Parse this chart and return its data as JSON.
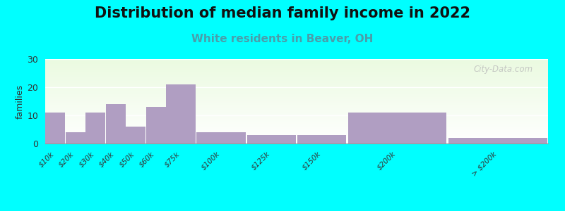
{
  "title": "Distribution of median family income in 2022",
  "subtitle": "White residents in Beaver, OH",
  "ylabel": "families",
  "categories": [
    "$10k",
    "$20k",
    "$30k",
    "$40k",
    "$50k",
    "$60k",
    "$75k",
    "$100k",
    "$125k",
    "$150k",
    "$200k",
    "> $200k"
  ],
  "values": [
    11,
    4,
    11,
    14,
    6,
    13,
    21,
    4,
    3,
    3,
    11,
    2
  ],
  "bin_lefts": [
    0,
    10,
    20,
    30,
    40,
    50,
    60,
    75,
    100,
    125,
    150,
    200
  ],
  "bin_rights": [
    10,
    20,
    30,
    40,
    50,
    60,
    75,
    100,
    125,
    150,
    200,
    250
  ],
  "bar_color": "#b09ec2",
  "outer_bg": "#00ffff",
  "ylim": [
    0,
    30
  ],
  "yticks": [
    0,
    10,
    20,
    30
  ],
  "title_fontsize": 15,
  "subtitle_fontsize": 11,
  "subtitle_color": "#4a9eaa",
  "ylabel_fontsize": 9,
  "watermark": "City-Data.com"
}
